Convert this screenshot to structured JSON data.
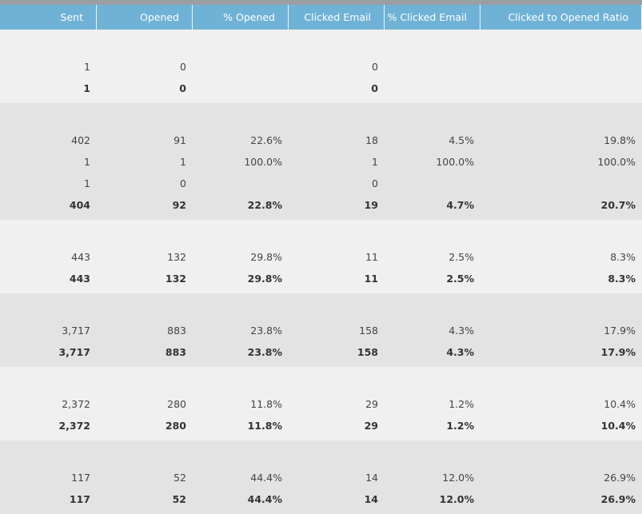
{
  "columns": [
    {
      "label": "Sent"
    },
    {
      "label": "Opened"
    },
    {
      "label": "% Opened"
    },
    {
      "label": "Clicked Email"
    },
    {
      "label": "% Clicked Email"
    },
    {
      "label": "Clicked to Opened Ratio"
    }
  ],
  "groups": [
    {
      "shade": "light",
      "rows": [
        {
          "cells": [
            "1",
            "0",
            "",
            "0",
            "",
            ""
          ]
        }
      ],
      "total": [
        "1",
        "0",
        "",
        "0",
        "",
        ""
      ]
    },
    {
      "shade": "dark",
      "rows": [
        {
          "cells": [
            "402",
            "91",
            "22.6%",
            "18",
            "4.5%",
            "19.8%"
          ]
        },
        {
          "cells": [
            "1",
            "1",
            "100.0%",
            "1",
            "100.0%",
            "100.0%"
          ]
        },
        {
          "cells": [
            "1",
            "0",
            "",
            "0",
            "",
            ""
          ]
        }
      ],
      "total": [
        "404",
        "92",
        "22.8%",
        "19",
        "4.7%",
        "20.7%"
      ]
    },
    {
      "shade": "light",
      "rows": [
        {
          "cells": [
            "443",
            "132",
            "29.8%",
            "11",
            "2.5%",
            "8.3%"
          ]
        }
      ],
      "total": [
        "443",
        "132",
        "29.8%",
        "11",
        "2.5%",
        "8.3%"
      ]
    },
    {
      "shade": "dark",
      "rows": [
        {
          "cells": [
            "3,717",
            "883",
            "23.8%",
            "158",
            "4.3%",
            "17.9%"
          ]
        }
      ],
      "total": [
        "3,717",
        "883",
        "23.8%",
        "158",
        "4.3%",
        "17.9%"
      ]
    },
    {
      "shade": "light",
      "rows": [
        {
          "cells": [
            "2,372",
            "280",
            "11.8%",
            "29",
            "1.2%",
            "10.4%"
          ]
        }
      ],
      "total": [
        "2,372",
        "280",
        "11.8%",
        "29",
        "1.2%",
        "10.4%"
      ]
    },
    {
      "shade": "dark",
      "rows": [
        {
          "cells": [
            "117",
            "52",
            "44.4%",
            "14",
            "12.0%",
            "26.9%"
          ]
        }
      ],
      "total": [
        "117",
        "52",
        "44.4%",
        "14",
        "12.0%",
        "26.9%"
      ]
    }
  ]
}
